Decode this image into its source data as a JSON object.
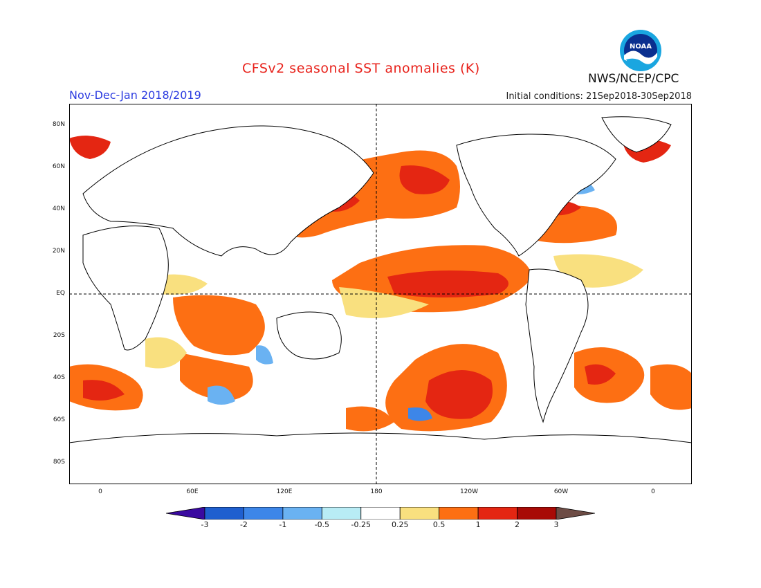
{
  "header": {
    "title": "CFSv2 seasonal SST anomalies (K)",
    "season": "Nov-Dec-Jan 2018/2019",
    "initial_conditions": "Initial conditions: 21Sep2018-30Sep2018",
    "agency": "NWS/NCEP/CPC",
    "logo_text": "NOAA"
  },
  "map": {
    "lat_labels": [
      "80N",
      "60N",
      "40N",
      "20N",
      "EQ",
      "20S",
      "40S",
      "60S",
      "80S"
    ],
    "lon_labels": [
      "0",
      "60E",
      "120E",
      "180",
      "120W",
      "60W",
      "0"
    ]
  },
  "colorbar": {
    "labels": [
      "-3",
      "-2",
      "-1",
      "-0.5",
      "-0.25",
      "0.25",
      "0.5",
      "1",
      "2",
      "3"
    ],
    "colors": [
      "#3a0aa0",
      "#1f5fcf",
      "#3d86e8",
      "#6ab2f2",
      "#b8ecf5",
      "#ffffff",
      "#f9e07f",
      "#fd6f13",
      "#e42612",
      "#a80a06",
      "#6d4c45"
    ]
  }
}
